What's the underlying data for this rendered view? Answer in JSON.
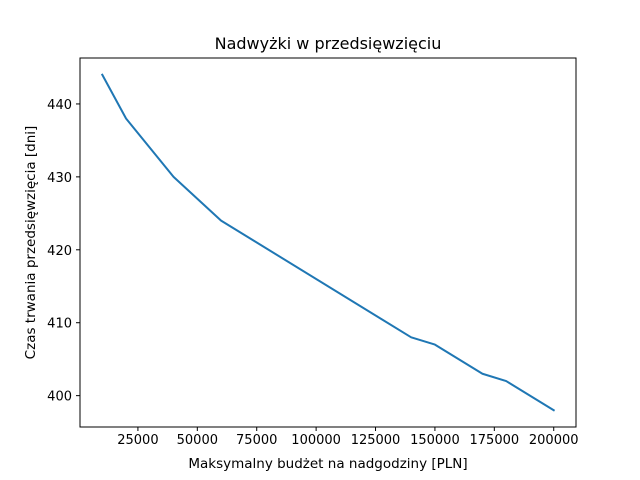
{
  "chart_data": {
    "type": "line",
    "title": "Nadwyżki w przedsięwzięciu",
    "xlabel": "Maksymalny budżet na nadgodziny [PLN]",
    "ylabel": "Czas trwania przedsięwzięcia [dni]",
    "xlim": [
      625,
      209375
    ],
    "ylim": [
      395.7,
      446.3
    ],
    "xticks": [
      25000,
      50000,
      75000,
      100000,
      125000,
      150000,
      175000,
      200000
    ],
    "xtick_labels": [
      "25000",
      "50000",
      "75000",
      "100000",
      "125000",
      "150000",
      "175000",
      "200000"
    ],
    "yticks": [
      400,
      410,
      420,
      430,
      440
    ],
    "ytick_labels": [
      "400",
      "410",
      "420",
      "430",
      "440"
    ],
    "grid": false,
    "series": [
      {
        "color": "#1f77b4",
        "x": [
          10000,
          20000,
          40000,
          60000,
          140000,
          150000,
          170000,
          180000,
          200000
        ],
        "y": [
          444,
          438,
          430,
          424,
          408,
          407,
          403,
          402,
          398
        ]
      }
    ]
  }
}
